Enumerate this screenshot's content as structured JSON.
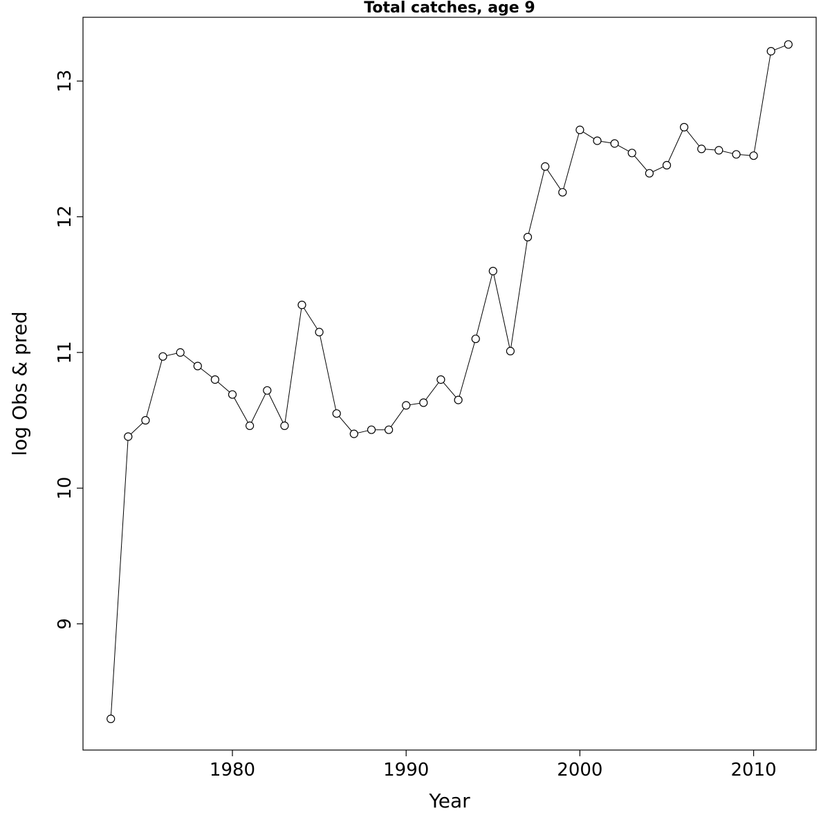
{
  "chart_data": {
    "type": "line",
    "title": "Total catches, age 9",
    "xlabel": "Year",
    "ylabel": "log Obs & pred",
    "marker": "open-circle",
    "line_color": "#000000",
    "point_fill": "#ffffff",
    "background": "#ffffff",
    "xlim": [
      1971.4,
      2013.6
    ],
    "ylim": [
      8.07,
      13.47
    ],
    "xticks": [
      1980,
      1990,
      2000,
      2010
    ],
    "yticks": [
      9,
      10,
      11,
      12,
      13
    ],
    "grid": false,
    "legend": "none",
    "x": [
      1973,
      1974,
      1975,
      1976,
      1977,
      1978,
      1979,
      1980,
      1981,
      1982,
      1983,
      1984,
      1985,
      1986,
      1987,
      1988,
      1989,
      1990,
      1991,
      1992,
      1993,
      1994,
      1995,
      1996,
      1997,
      1998,
      1999,
      2000,
      2001,
      2002,
      2003,
      2004,
      2005,
      2006,
      2007,
      2008,
      2009,
      2010,
      2011,
      2012
    ],
    "y": [
      8.3,
      10.38,
      10.5,
      10.97,
      11.0,
      10.9,
      10.8,
      10.69,
      10.46,
      10.72,
      10.46,
      11.35,
      11.15,
      10.55,
      10.4,
      10.43,
      10.43,
      10.61,
      10.63,
      10.8,
      10.65,
      11.1,
      11.6,
      11.01,
      11.85,
      12.37,
      12.18,
      12.64,
      12.56,
      12.54,
      12.47,
      12.32,
      12.38,
      12.66,
      12.5,
      12.49,
      12.46,
      12.45,
      13.22,
      13.27
    ]
  }
}
